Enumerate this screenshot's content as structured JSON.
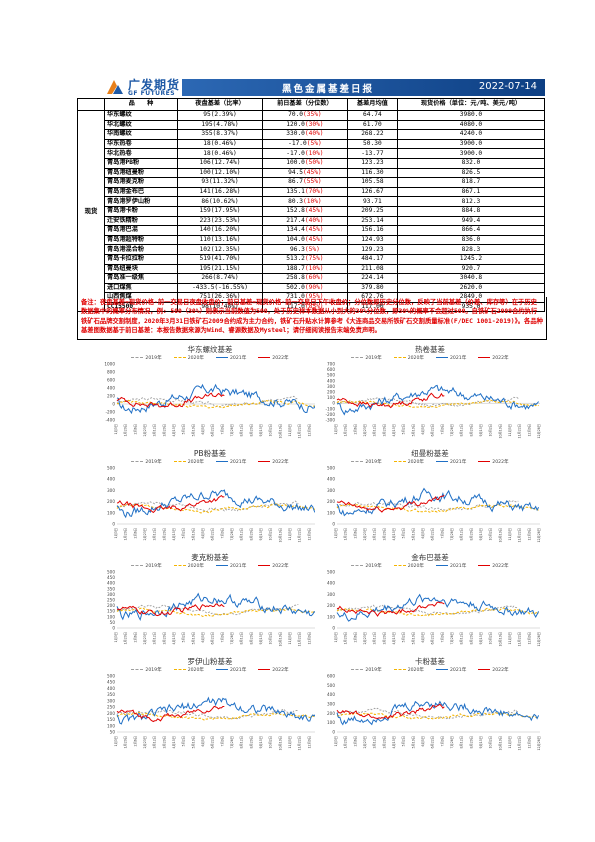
{
  "brand": {
    "name_cn": "广发期货",
    "name_en": "GF FUTURES"
  },
  "header": {
    "title": "黑色金属基差日报",
    "date": "2022-07-14"
  },
  "table": {
    "headers": [
      "品　　种",
      "夜盘基差（比率）",
      "前日基差（分位数）",
      "基差月均值",
      "现货价格（单位：元/吨、美元/吨）"
    ],
    "category": "现货",
    "rows": [
      {
        "name": "华东螺纹",
        "night": "95(2.39%)",
        "prev": "70.0",
        "pct": "(35%)",
        "avg": "64.74",
        "spot": "3980.0"
      },
      {
        "name": "华北螺纹",
        "night": "195(4.78%)",
        "prev": "120.0",
        "pct": "(30%)",
        "avg": "61.70",
        "spot": "4080.0"
      },
      {
        "name": "华南螺纹",
        "night": "355(8.37%)",
        "prev": "330.0",
        "pct": "(40%)",
        "avg": "268.22",
        "spot": "4240.0"
      },
      {
        "name": "华东热卷",
        "night": "18(0.46%)",
        "prev": "-17.0",
        "pct": "(5%)",
        "avg": "50.30",
        "spot": "3900.0"
      },
      {
        "name": "华北热卷",
        "night": "18(0.46%)",
        "prev": "-17.0",
        "pct": "(10%)",
        "avg": "-13.77",
        "spot": "3900.0"
      },
      {
        "name": "青岛港PB粉",
        "night": "106(12.74%)",
        "prev": "100.0",
        "pct": "(50%)",
        "avg": "123.23",
        "spot": "832.0"
      },
      {
        "name": "青岛港纽曼粉",
        "night": "100(12.10%)",
        "prev": "94.5",
        "pct": "(45%)",
        "avg": "116.30",
        "spot": "826.5"
      },
      {
        "name": "青岛港麦克粉",
        "night": "93(11.32%)",
        "prev": "86.7",
        "pct": "(55%)",
        "avg": "105.58",
        "spot": "818.7"
      },
      {
        "name": "青岛港金布巴",
        "night": "141(16.28%)",
        "prev": "135.1",
        "pct": "(70%)",
        "avg": "126.67",
        "spot": "867.1"
      },
      {
        "name": "青岛港罗伊山粉",
        "night": "86(10.62%)",
        "prev": "80.3",
        "pct": "(10%)",
        "avg": "93.71",
        "spot": "812.3"
      },
      {
        "name": "青岛港卡粉",
        "night": "159(17.95%)",
        "prev": "152.8",
        "pct": "(45%)",
        "avg": "209.25",
        "spot": "884.8"
      },
      {
        "name": "迁安铁精粉",
        "night": "223(23.53%)",
        "prev": "217.4",
        "pct": "(40%)",
        "avg": "253.14",
        "spot": "949.4"
      },
      {
        "name": "青岛港巴混",
        "night": "140(16.20%)",
        "prev": "134.4",
        "pct": "(45%)",
        "avg": "156.16",
        "spot": "866.4"
      },
      {
        "name": "青岛港超特粉",
        "night": "110(13.16%)",
        "prev": "104.0",
        "pct": "(45%)",
        "avg": "124.93",
        "spot": "836.0"
      },
      {
        "name": "青岛港混合粉",
        "night": "102(12.35%)",
        "prev": "96.3",
        "pct": "(5%)",
        "avg": "129.23",
        "spot": "828.3"
      },
      {
        "name": "青岛卡拉拉粉",
        "night": "519(41.70%)",
        "prev": "513.2",
        "pct": "(75%)",
        "avg": "484.17",
        "spot": "1245.2"
      },
      {
        "name": "青岛纽曼块",
        "night": "195(21.15%)",
        "prev": "188.7",
        "pct": "(10%)",
        "avg": "211.08",
        "spot": "920.7"
      },
      {
        "name": "青岛准一级焦",
        "night": "266(8.74%)",
        "prev": "258.8",
        "pct": "(60%)",
        "avg": "224.14",
        "spot": "3040.8"
      },
      {
        "name": "进口煤焦",
        "night": "-433.5(-16.55%)",
        "prev": "502.0",
        "pct": "(90%)",
        "avg": "379.80",
        "spot": "2620.0"
      },
      {
        "name": "山西焦煤",
        "night": "751(26.36%)",
        "prev": "731.0",
        "pct": "(95%)",
        "avg": "672.76",
        "spot": "2849.0"
      },
      {
        "name": "CCI5500",
        "night": "98(10.48%)",
        "prev": "117.0",
        "pct": "(85%)",
        "avg": "117.00",
        "spot": "935.0"
      }
    ]
  },
  "note": "备注：夜盘基差=现货价格-前一交易日夜盘收盘价；前日基差=现货价格-前一交易日下午收盘价；分位数即历史分位数，反映了当前基差（价差、库存等）在于历史数据集中的概率分布情况，例: 500（30%）则表示当前数值为500，处于历史样本数据从小到大的30%分位数，即30%的概率不会超过500。自铁矿石2009合约执行铁矿石品牌交割制度，2020年3月31日铁矿石2009合约成为主力合约，铁矿石升贴水计算参考《大连商品交易所铁矿石交割质量标准(F/DEC 1001-2019)》。各品种基差图数据基于前日基差：本报告数据来源为Wind、睿源数据及Mysteel；请仔细阅读报告末端免责声明。",
  "legend": [
    "2019年",
    "2020年",
    "2021年",
    "2022年"
  ],
  "colors": {
    "y2019": "#9e9e9e",
    "y2020": "#f4b400",
    "y2021": "#1f6fc5",
    "y2022": "#e00000",
    "banner": "#1f5aa6"
  },
  "charts": [
    {
      "title": "华东螺纹基差",
      "yticks": [
        1000,
        800,
        600,
        400,
        200,
        0,
        -200,
        -400
      ],
      "ymin": -400,
      "ymax": 1000
    },
    {
      "title": "热卷基差",
      "yticks": [
        700,
        600,
        500,
        400,
        300,
        200,
        100,
        0,
        -100,
        -200,
        -300
      ],
      "ymin": -300,
      "ymax": 700
    },
    {
      "title": "PB粉基差",
      "yticks": [
        500,
        400,
        300,
        200,
        100,
        0
      ],
      "ymin": 0,
      "ymax": 500
    },
    {
      "title": "纽曼粉基差",
      "yticks": [
        500,
        400,
        300,
        200,
        100,
        0
      ],
      "ymin": 0,
      "ymax": 500
    },
    {
      "title": "麦克粉基差",
      "yticks": [
        500,
        450,
        400,
        350,
        300,
        250,
        200,
        150,
        100,
        50,
        0
      ],
      "ymin": 0,
      "ymax": 500
    },
    {
      "title": "金布巴基差",
      "yticks": [
        500,
        400,
        300,
        200,
        100,
        0
      ],
      "ymin": 0,
      "ymax": 500
    },
    {
      "title": "罗伊山粉基差",
      "yticks": [
        500,
        450,
        400,
        350,
        300,
        250,
        200,
        150,
        100,
        50
      ],
      "ymin": 50,
      "ymax": 500
    },
    {
      "title": "卡粉基差",
      "yticks": [
        600,
        500,
        400,
        300,
        200,
        100,
        0
      ],
      "ymin": 0,
      "ymax": 600
    }
  ],
  "x_ticks": [
    "1月3日",
    "1月20日",
    "2月6日",
    "2月23日",
    "3月12日",
    "3月29日",
    "4月15日",
    "5月2日",
    "5月19日",
    "6月5日",
    "6月22日",
    "7月9日",
    "7月26日",
    "8月12日",
    "8月29日",
    "9月15日",
    "10月2日",
    "10月19日",
    "11月5日",
    "11月22日",
    "12月9日",
    "12月26日"
  ]
}
